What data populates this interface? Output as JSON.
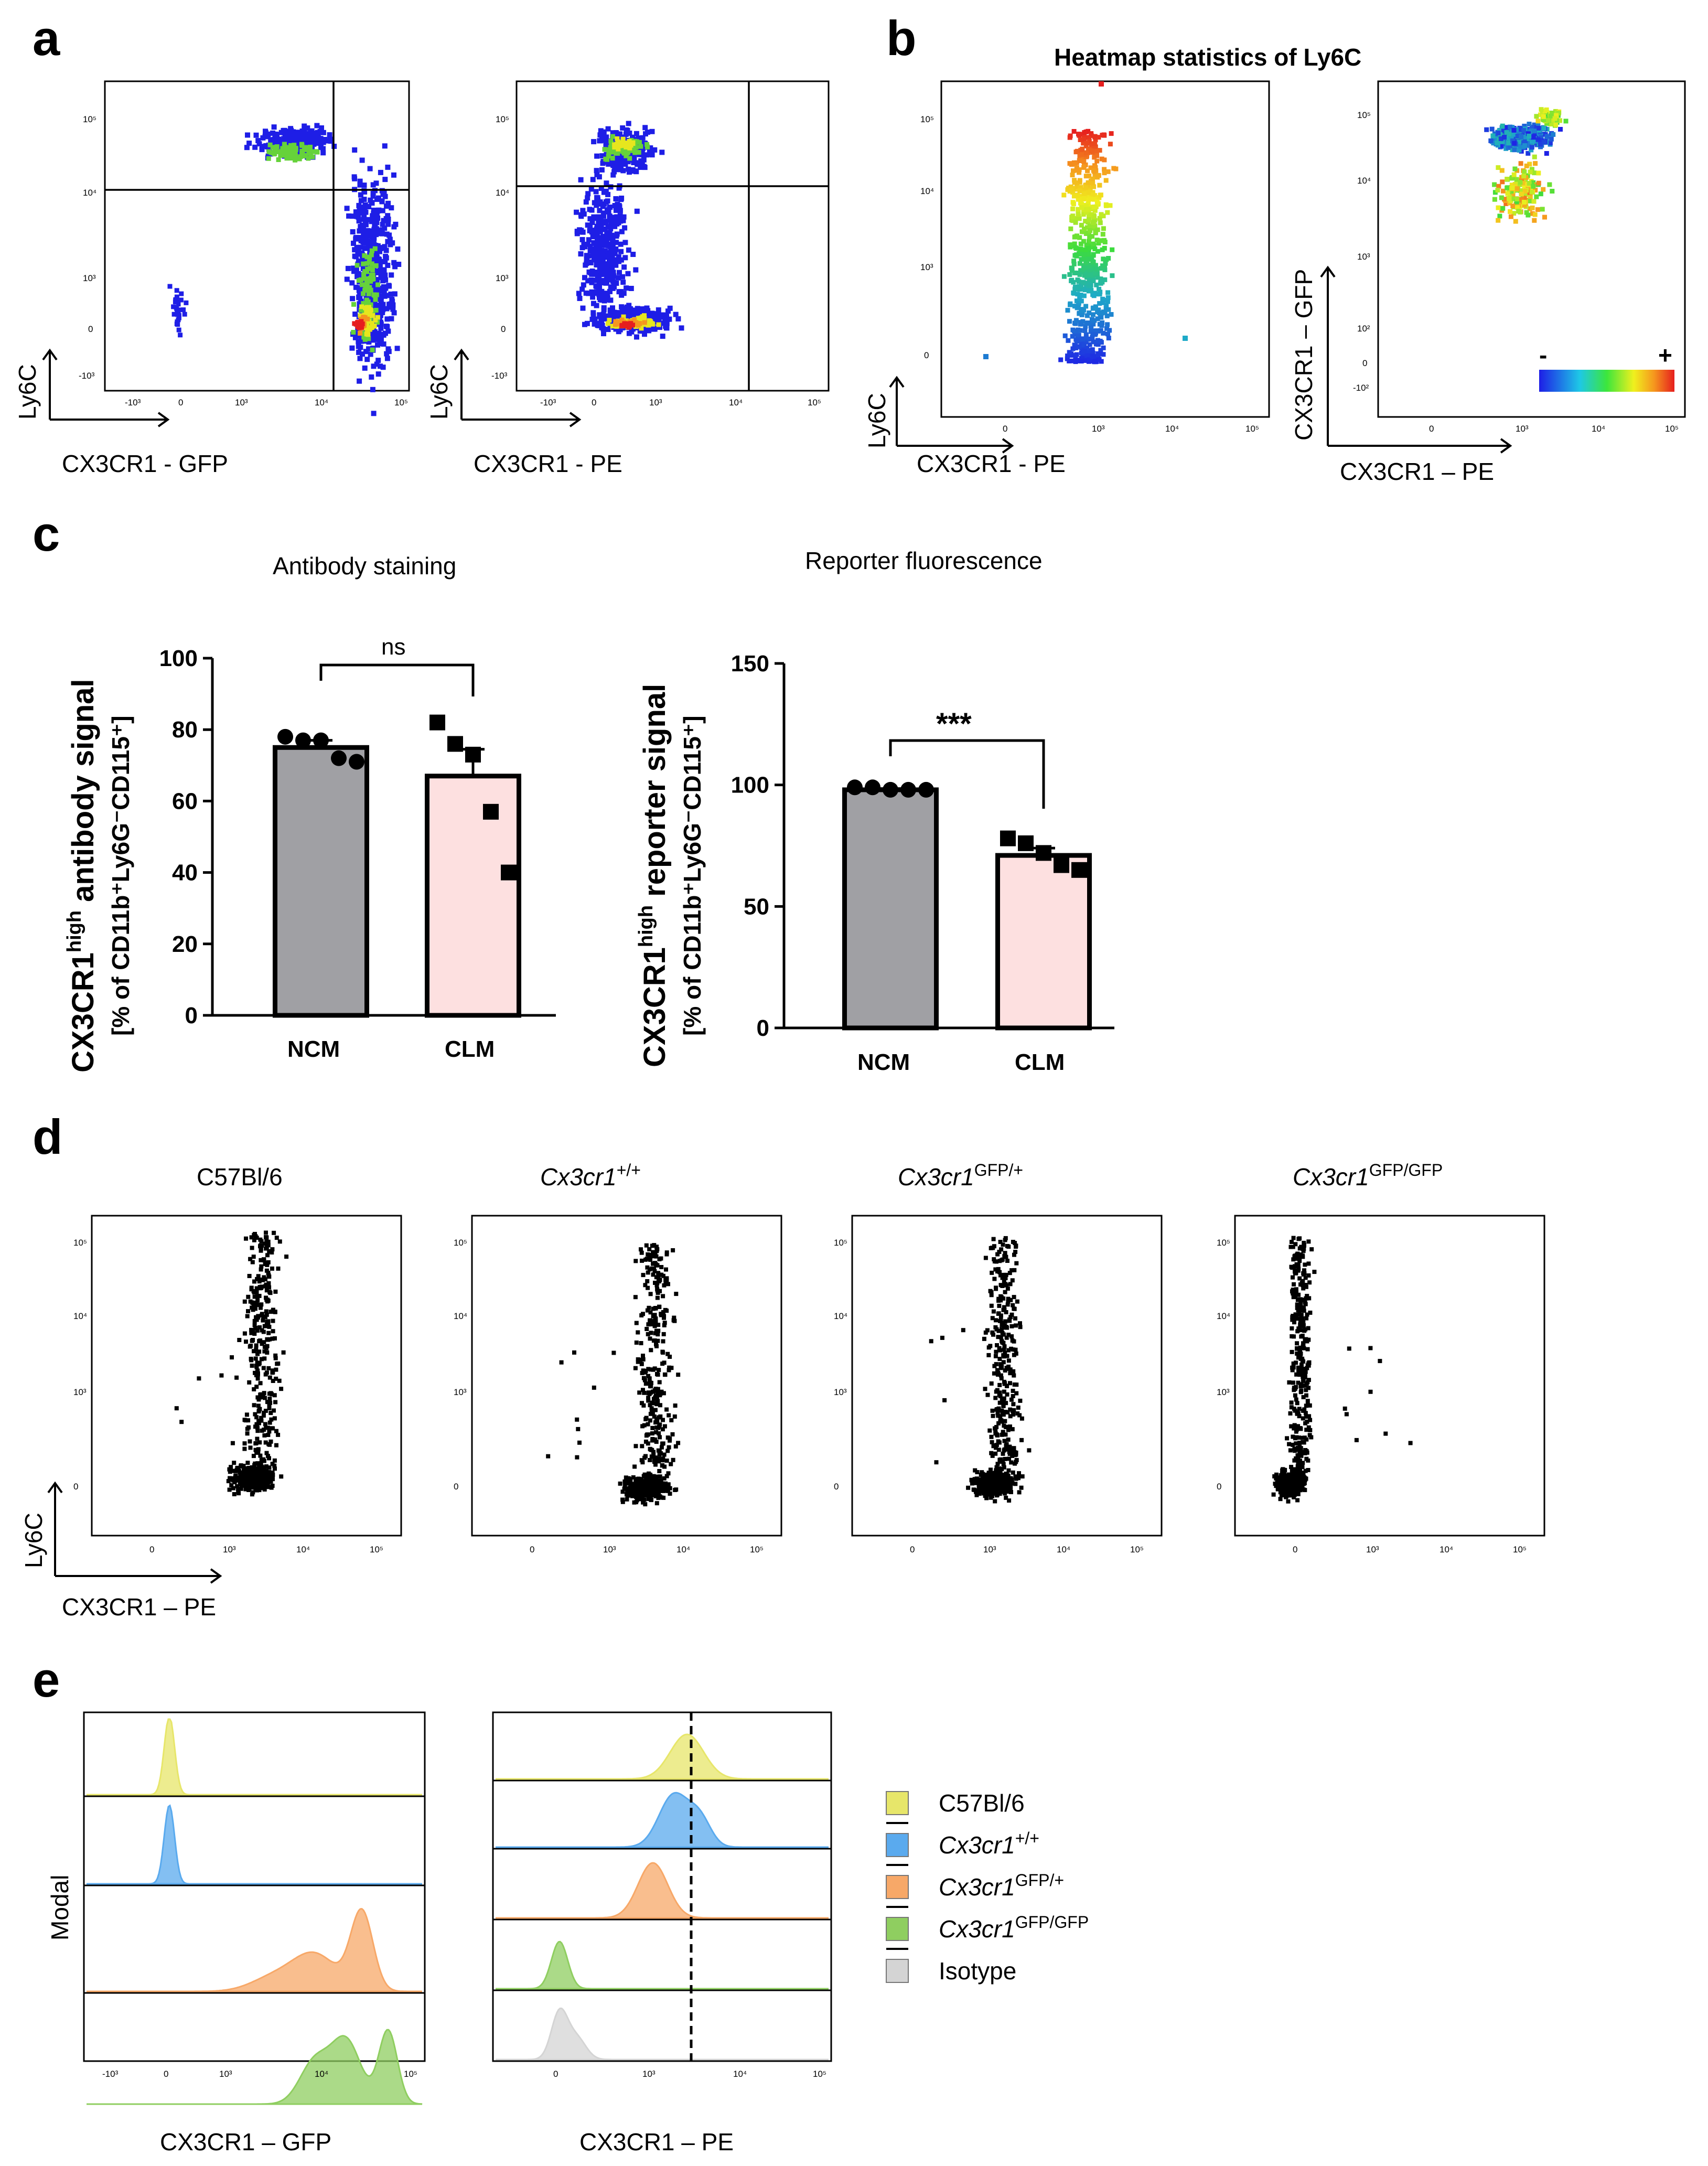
{
  "panels": {
    "a": "a",
    "b": "b",
    "c": "c",
    "d": "d",
    "e": "e"
  },
  "colors": {
    "flow_blue": "#1e1ee6",
    "flow_green": "#66d23a",
    "flow_yellow": "#e6e61e",
    "flow_orange": "#f5961e",
    "flow_red": "#e61e1e",
    "ncm_fill": "#a0a0a4",
    "clm_fill": "#fde0e0",
    "lane_c57": "#e7e66a",
    "lane_wt": "#5aaaee",
    "lane_het": "#f7a868",
    "lane_ko": "#8fce60",
    "lane_iso": "#d4d4d4"
  },
  "flow_ticks": [
    "-10³",
    "0",
    "10³",
    "10⁴",
    "10⁵"
  ],
  "flow_ticks_pos": [
    "10³",
    "10⁴",
    "10⁵"
  ],
  "flow_ticks_y5": [
    "10⁵",
    "10⁴",
    "10³",
    "0",
    "-10³"
  ],
  "flow_ticks_y4": [
    "10⁵",
    "10⁴",
    "10³",
    "0"
  ],
  "flow_ticks_y_gfp": [
    "10⁵",
    "10⁴",
    "10³",
    "10²",
    "0",
    "-10²"
  ],
  "zero_label": "0",
  "panel_a": {
    "left": {
      "xlabel": "CX3CR1 - GFP",
      "ylabel": "Ly6C",
      "gate_note": "quadrant gate"
    },
    "right": {
      "xlabel": "CX3CR1 - PE",
      "ylabel": "Ly6C",
      "gate_note": "quadrant gate"
    }
  },
  "panel_b": {
    "title": "Heatmap statistics of Ly6C",
    "left": {
      "xlabel": "CX3CR1 - PE",
      "ylabel": "Ly6C"
    },
    "right": {
      "xlabel": "CX3CR1 – PE",
      "ylabel": "CX3CR1 – GFP"
    },
    "scale_min": "-",
    "scale_max": "+"
  },
  "chart_data": [
    {
      "type": "bar",
      "title": "Antibody staining",
      "categories": [
        "NCM",
        "CLM"
      ],
      "values": [
        75,
        67
      ],
      "sem": [
        2,
        7.5
      ],
      "points": [
        [
          78,
          77,
          77,
          72,
          71
        ],
        [
          82,
          76,
          73,
          57,
          40
        ]
      ],
      "ylabel_main": "CX3CR1",
      "ylabel_sup": "high",
      "ylabel_rest": " antibody signal",
      "ylabel2": "[% of CD11b⁺Ly6G⁻CD115⁺]",
      "ylim": [
        0,
        100
      ],
      "yticks": [
        0,
        20,
        40,
        60,
        80,
        100
      ],
      "ytick_labels": [
        "0",
        "20",
        "40",
        "60",
        "80",
        "100"
      ],
      "significance": "ns"
    },
    {
      "type": "bar",
      "title": "Reporter fluorescence",
      "categories": [
        "NCM",
        "CLM"
      ],
      "values": [
        98,
        71
      ],
      "sem": [
        0.5,
        3
      ],
      "points": [
        [
          99,
          99,
          98,
          98,
          98
        ],
        [
          78,
          76,
          72,
          67,
          65
        ]
      ],
      "ylabel_main": "CX3CR1",
      "ylabel_sup": "high",
      "ylabel_rest": " reporter signal",
      "ylabel2": "[% of CD11b⁺Ly6G⁻CD115⁺]",
      "ylim": [
        0,
        150
      ],
      "yticks": [
        0,
        50,
        100,
        150
      ],
      "ytick_labels": [
        "0",
        "50",
        "100",
        "150"
      ],
      "significance": "***"
    }
  ],
  "panel_d": {
    "plots": [
      {
        "pre": "C57Bl/6",
        "sup": ""
      },
      {
        "pre": "Cx3cr1",
        "sup": "+/+"
      },
      {
        "pre": "Cx3cr1",
        "sup": "GFP/+"
      },
      {
        "pre": "Cx3cr1",
        "sup": "GFP/GFP"
      }
    ],
    "xlabel": "CX3CR1 – PE",
    "ylabel": "Ly6C"
  },
  "panel_e": {
    "ylabel": "Modal",
    "left_xlabel": "CX3CR1 – GFP",
    "right_xlabel": "CX3CR1 – PE",
    "legend": [
      {
        "pre": "C57Bl/6",
        "sup": ""
      },
      {
        "pre": "Cx3cr1",
        "sup": "+/+"
      },
      {
        "pre": "Cx3cr1",
        "sup": "GFP/+"
      },
      {
        "pre": "Cx3cr1",
        "sup": "GFP/GFP"
      },
      {
        "pre": "Isotype",
        "sup": ""
      }
    ]
  }
}
